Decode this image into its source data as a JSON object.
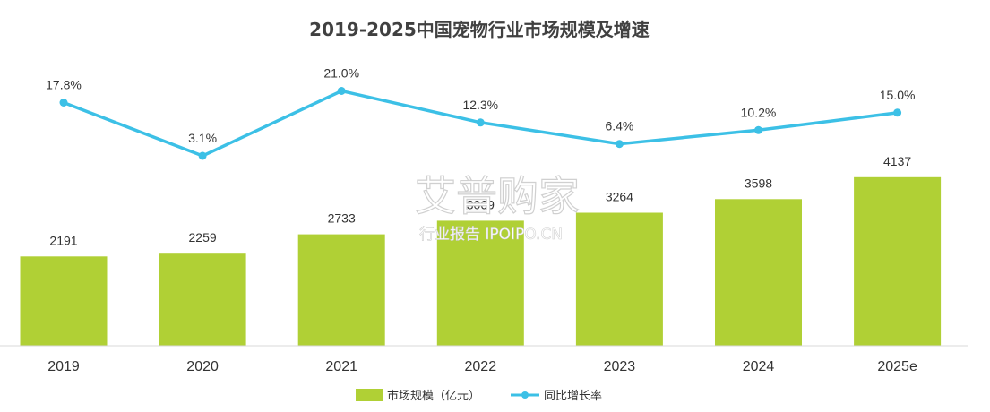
{
  "chart_data": {
    "type": "bar+line",
    "title": "2019-2025中国宠物行业市场规模及增速",
    "categories": [
      "2019",
      "2020",
      "2021",
      "2022",
      "2023",
      "2024",
      "2025e"
    ],
    "series": [
      {
        "name": "市场规模（亿元）",
        "type": "bar",
        "values": [
          2191,
          2259,
          2733,
          3069,
          3264,
          3598,
          4137
        ],
        "labels": [
          "2191",
          "2259",
          "2733",
          "3069",
          "3264",
          "3598",
          "4137"
        ],
        "color": "#b0d035"
      },
      {
        "name": "同比增长率",
        "type": "line",
        "values": [
          17.8,
          3.1,
          21.0,
          12.3,
          6.4,
          10.2,
          15.0
        ],
        "labels": [
          "17.8%",
          "3.1%",
          "21.0%",
          "12.3%",
          "6.4%",
          "10.2%",
          "15.0%"
        ],
        "color": "#3cc0e6"
      }
    ],
    "grid": false,
    "legend_position": "bottom-center"
  },
  "legend": {
    "bar_label": "市场规模（亿元）",
    "line_label": "同比增长率"
  },
  "watermark": {
    "main": "艾普购家",
    "sub": "行业报告 IPOIPO.CN"
  }
}
